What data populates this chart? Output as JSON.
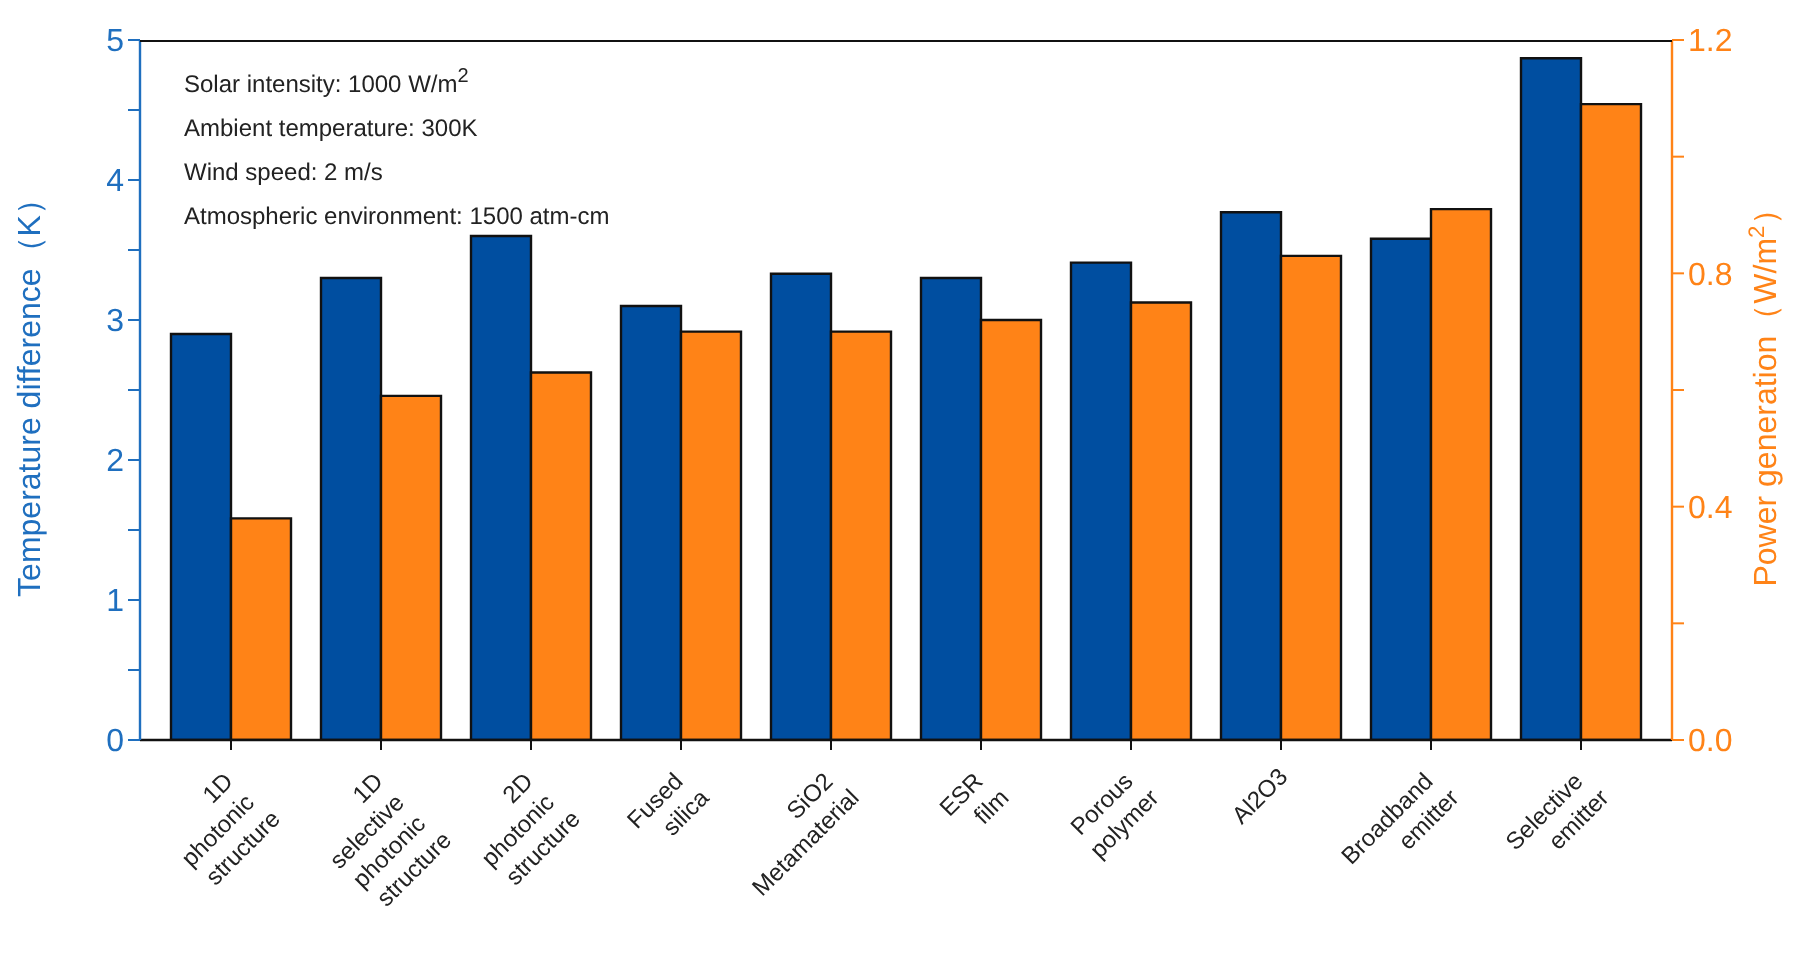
{
  "chart_data": {
    "type": "bar",
    "ylabel": "Temperature difference（K）",
    "y2label": "Power generation（W/m$^{2}$）",
    "categories": [
      "1D photonic structure",
      "1D selective photonic structure",
      "2D photonic structure",
      "Fused silica",
      "SiO2 Metamaterial",
      "ESR film",
      "Porous polymer",
      "Al2O3",
      "Broadband emitter",
      "Selective emitter"
    ],
    "series": [
      {
        "color": "#004ea0",
        "values": [
          2.9,
          3.3,
          3.6,
          3.1,
          3.33,
          3.3,
          3.41,
          3.77,
          3.58,
          4.87
        ]
      },
      {
        "color": "#ff8317",
        "axis": "y2",
        "values": [
          0.38,
          0.59,
          0.63,
          0.7,
          0.7,
          0.72,
          0.75,
          0.83,
          0.91,
          1.09
        ]
      }
    ],
    "ylim": [
      0,
      5
    ],
    "yticks": [
      0,
      {
        "value": 0.5,
        "label": null
      },
      1,
      {
        "value": 1.5,
        "label": null
      },
      2,
      {
        "value": 2.5,
        "label": null
      },
      3,
      {
        "value": 3.5,
        "label": null
      },
      4,
      {
        "value": 4.5,
        "label": null
      },
      5
    ],
    "y2lim": [
      0,
      1.2
    ],
    "y2ticks": [
      "0.0",
      {
        "value": 0.2,
        "label": null
      },
      {
        "value": 0.4,
        "label": "0.4"
      },
      {
        "value": 0.6,
        "label": null
      },
      {
        "value": 0.8,
        "label": "0.8"
      },
      {
        "value": 1.0,
        "label": null
      },
      {
        "value": 1.2,
        "label": "1.2"
      }
    ],
    "annotations": [
      "Solar intensity: 1000 W/m$^{2}$",
      "Ambient temperature: 300K",
      "Wind speed: 2 m/s",
      "Atmospheric environment: 1500 atm-cm"
    ],
    "grid": false,
    "legend": false
  }
}
